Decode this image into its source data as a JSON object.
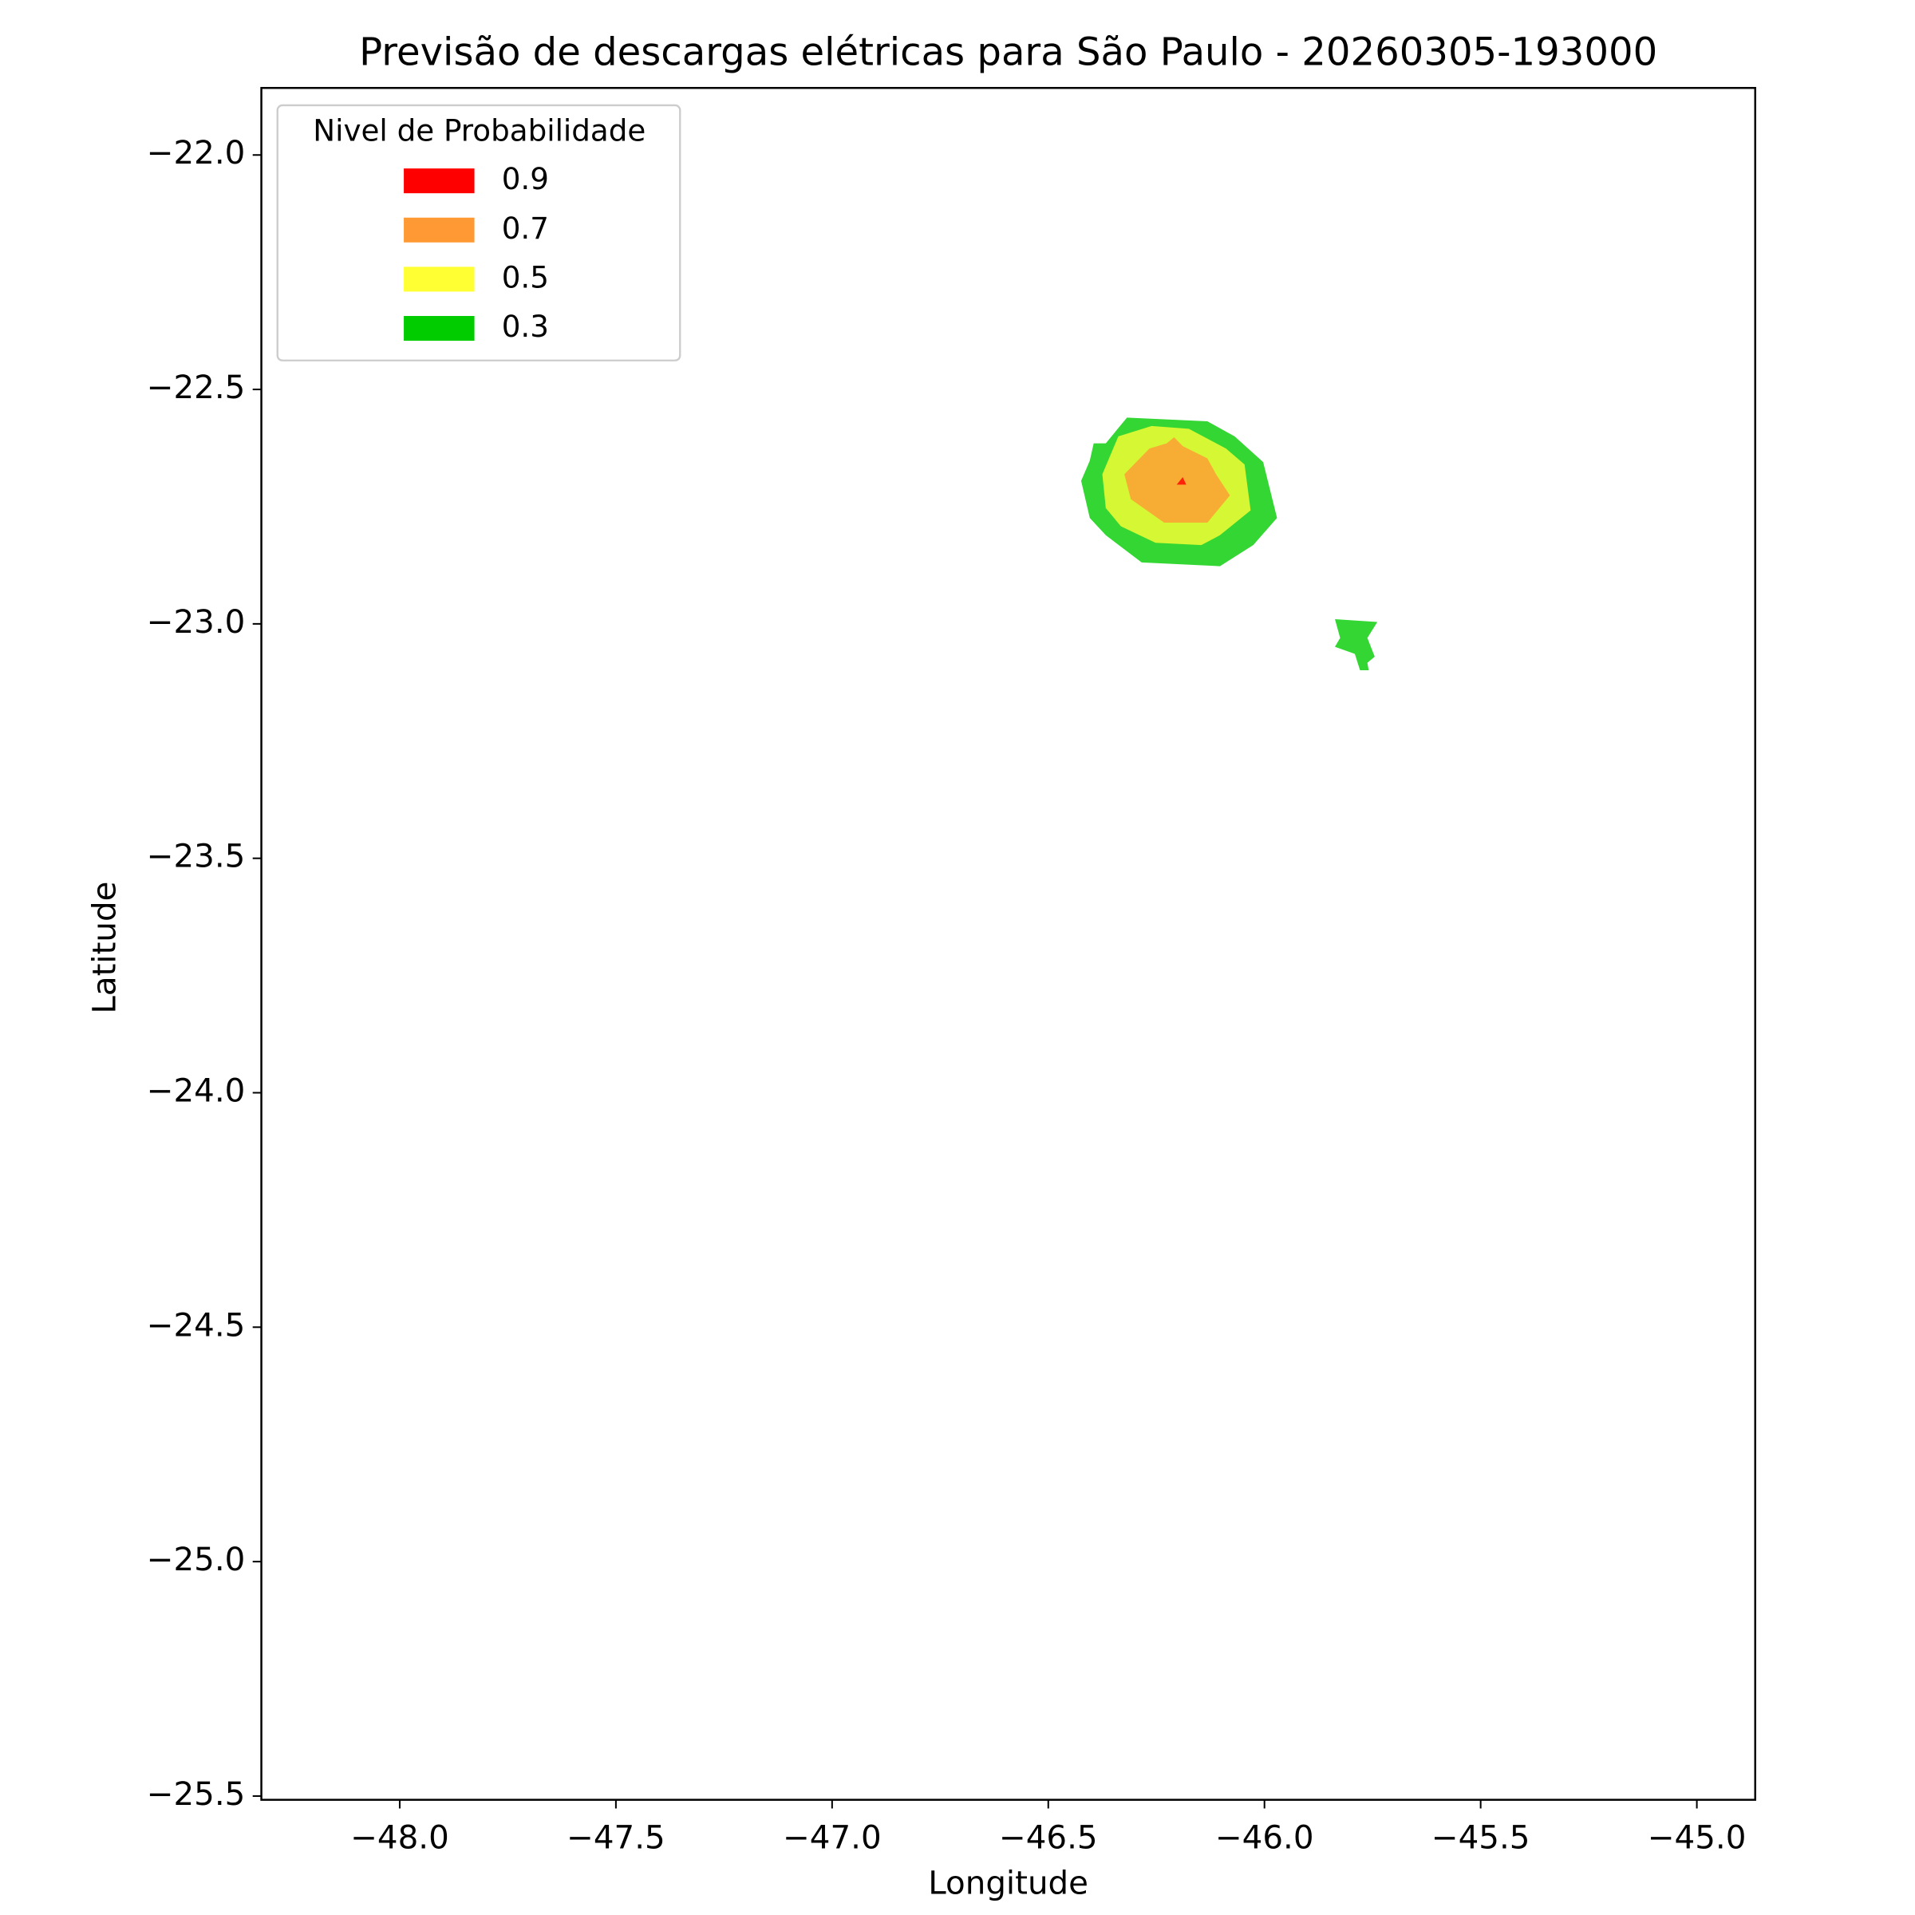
{
  "chart_data": {
    "type": "contour",
    "title": "Previsão de descargas elétricas para São Paulo - 20260305-193000",
    "x_label": "Longitude",
    "y_label": "Latitude",
    "legend_title": "Nivel de Probabilidade",
    "legend_loc": "upper left",
    "alpha": 0.8,
    "xlim": [
      -48.32,
      -44.865
    ],
    "ylim": [
      -25.508,
      -21.857
    ],
    "xticks": [
      {
        "value": -48,
        "label": "−48.0"
      },
      {
        "value": -47.5,
        "label": "−47.5"
      },
      {
        "value": -47,
        "label": "−47.0"
      },
      {
        "value": -46.5,
        "label": "−46.5"
      },
      {
        "value": -46,
        "label": "−46.0"
      },
      {
        "value": -45.5,
        "label": "−45.5"
      },
      {
        "value": -45,
        "label": "−45.0"
      }
    ],
    "yticks": [
      {
        "value": -22,
        "label": "−22.0"
      },
      {
        "value": -22.5,
        "label": "−22.5"
      },
      {
        "value": -23,
        "label": "−23.0"
      },
      {
        "value": -23.5,
        "label": "−23.5"
      },
      {
        "value": -24,
        "label": "−24.0"
      },
      {
        "value": -24.5,
        "label": "−24.5"
      },
      {
        "value": -25,
        "label": "−25.0"
      },
      {
        "value": -25.5,
        "label": "−25.5"
      }
    ],
    "series": [
      {
        "name": "0.9",
        "color": "#ff0000",
        "polygons": [
          {
            "lon": [
              -46.203,
              -46.189,
              -46.181
            ],
            "lat": [
              -22.703,
              -22.687,
              -22.703
            ]
          }
        ]
      },
      {
        "name": "0.7",
        "color": "#ff9933",
        "polygons": [
          {
            "lon": [
              -46.266,
              -46.226,
              -46.209,
              -46.189,
              -46.132,
              -46.112,
              -46.08,
              -46.132,
              -46.232,
              -46.309,
              -46.324
            ],
            "lat": [
              -22.626,
              -22.615,
              -22.602,
              -22.621,
              -22.647,
              -22.681,
              -22.726,
              -22.784,
              -22.784,
              -22.734,
              -22.681
            ]
          }
        ]
      },
      {
        "name": "0.5",
        "color": "#ffff33",
        "polygons": [
          {
            "lon": [
              -46.338,
              -46.261,
              -46.175,
              -46.089,
              -46.046,
              -46.032,
              -46.103,
              -46.146,
              -46.252,
              -46.332,
              -46.367,
              -46.375
            ],
            "lat": [
              -22.6,
              -22.578,
              -22.584,
              -22.626,
              -22.66,
              -22.758,
              -22.811,
              -22.832,
              -22.827,
              -22.792,
              -22.753,
              -22.681
            ]
          }
        ]
      },
      {
        "name": "0.3",
        "color": "#00cc00",
        "polygons": [
          {
            "lon": [
              -46.318,
              -46.132,
              -46.069,
              -46.003,
              -45.971,
              -46.026,
              -46.103,
              -46.284,
              -46.367,
              -46.404,
              -46.424,
              -46.404,
              -46.395,
              -46.367
            ],
            "lat": [
              -22.56,
              -22.568,
              -22.6,
              -22.655,
              -22.774,
              -22.832,
              -22.877,
              -22.869,
              -22.811,
              -22.774,
              -22.695,
              -22.652,
              -22.615,
              -22.615
            ]
          },
          {
            "lon": [
              -45.837,
              -45.739,
              -45.762,
              -45.745,
              -45.762,
              -45.759,
              -45.779,
              -45.791,
              -45.837,
              -45.825
            ],
            "lat": [
              -22.99,
              -22.996,
              -23.03,
              -23.07,
              -23.083,
              -23.099,
              -23.099,
              -23.064,
              -23.049,
              -23.03
            ]
          }
        ]
      }
    ]
  }
}
